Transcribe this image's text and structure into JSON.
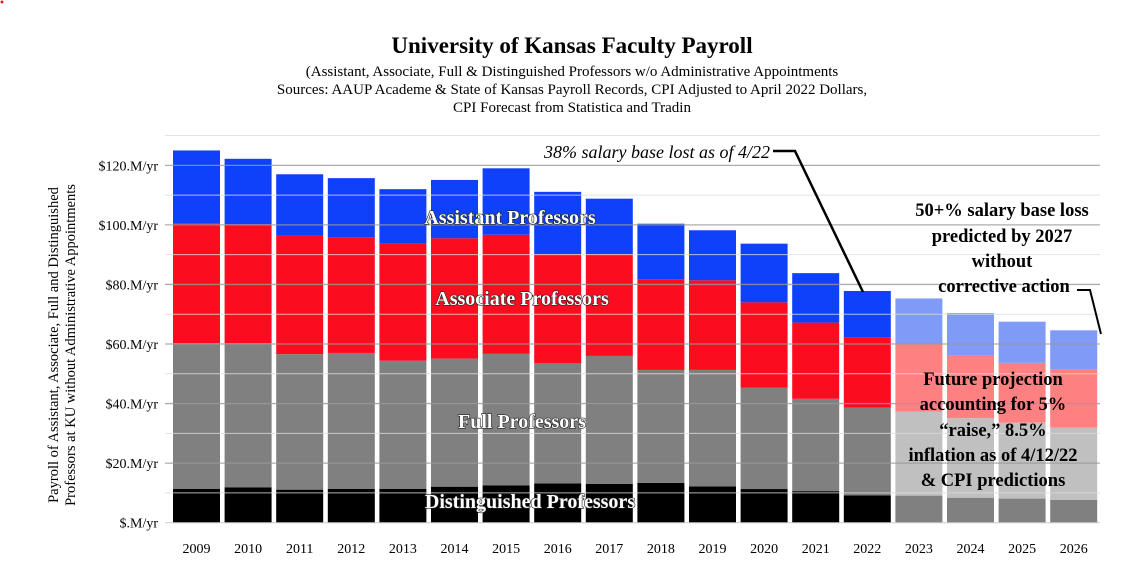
{
  "chart_data": {
    "type": "bar",
    "stacked": true,
    "title": "University of Kansas Faculty Payroll",
    "subtitle_lines": [
      "(Assistant, Associate, Full & Distinguished Professors w/o Administrative Appointments",
      "Sources: AAUP Academe & State of Kansas Payroll Records, CPI Adjusted to April 2022 Dollars,",
      "CPI Forecast from Statistica and Tradin"
    ],
    "ylabel_lines": [
      "Payroll of Assistant, Associate, Full and Distinguished",
      "Professors at KU without Administrative Appointments"
    ],
    "ylim": [
      0,
      130
    ],
    "yticks": [
      0,
      20,
      40,
      60,
      80,
      100,
      120
    ],
    "ytick_labels": [
      "$.M/yr",
      "$20.M/yr",
      "$40.M/yr",
      "$60.M/yr",
      "$80.M/yr",
      "$100.M/yr",
      "$120.M/yr"
    ],
    "grid": true,
    "categories": [
      "2009",
      "2010",
      "2011",
      "2012",
      "2013",
      "2014",
      "2015",
      "2016",
      "2017",
      "2018",
      "2019",
      "2020",
      "2021",
      "2022",
      "2023",
      "2024",
      "2025",
      "2026"
    ],
    "projected_from": "2023",
    "series": [
      {
        "name": "Distinguished Professors",
        "color": "#000000",
        "projected_color": "#808080",
        "values": [
          11.4,
          11.9,
          11.1,
          11.4,
          11.4,
          12.1,
          12.5,
          13.2,
          13.0,
          13.4,
          12.2,
          11.3,
          10.6,
          9.2,
          9.1,
          8.4,
          8.1,
          7.7
        ]
      },
      {
        "name": "Full Professors",
        "color": "#808080",
        "projected_color": "#c0c0c0",
        "values": [
          48.9,
          48.4,
          45.5,
          45.6,
          43.0,
          43.0,
          44.2,
          40.3,
          43.0,
          37.9,
          39.1,
          34.0,
          31.0,
          29.4,
          28.2,
          26.7,
          25.5,
          24.2
        ]
      },
      {
        "name": "Associate Professors",
        "color": "#fb0d1f",
        "projected_color": "#ff8080",
        "values": [
          40.1,
          39.9,
          40.0,
          38.9,
          39.5,
          40.4,
          40.0,
          36.7,
          34.2,
          30.5,
          30.1,
          28.7,
          25.6,
          23.5,
          22.7,
          21.0,
          20.1,
          19.5
        ]
      },
      {
        "name": "Assistant Professors",
        "color": "#0f41fb",
        "projected_color": "#809af8",
        "values": [
          24.6,
          22.0,
          20.4,
          19.8,
          18.1,
          19.6,
          22.3,
          20.9,
          18.6,
          18.6,
          16.8,
          19.7,
          16.6,
          15.7,
          15.3,
          14.3,
          13.8,
          13.2
        ]
      }
    ],
    "annotations": {
      "lost": "38% salary base lost as of 4/22",
      "prediction_lines": [
        "50+% salary base loss",
        "predicted by 2027",
        "without",
        "corrective action"
      ],
      "projection_lines": [
        "Future projection",
        "accounting for 5%",
        "“raise,” 8.5%",
        "inflation as of 4/12/22",
        "& CPI predictions"
      ]
    }
  }
}
